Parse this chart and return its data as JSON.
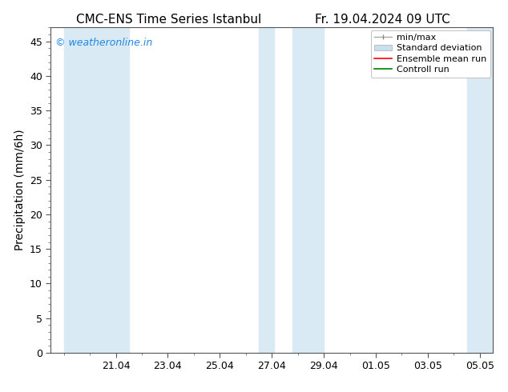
{
  "title_left": "CMC-ENS Time Series Istanbul",
  "title_right": "Fr. 19.04.2024 09 UTC",
  "ylabel": "Precipitation (mm/6h)",
  "background_color": "#ffffff",
  "plot_bg_color": "#ffffff",
  "ylim": [
    0,
    47
  ],
  "yticks": [
    0,
    5,
    10,
    15,
    20,
    25,
    30,
    35,
    40,
    45
  ],
  "xtick_labels": [
    "21.04",
    "23.04",
    "25.04",
    "27.04",
    "29.04",
    "01.05",
    "03.05",
    "05.05"
  ],
  "tick_positions": [
    2,
    4,
    6,
    8,
    10,
    12,
    14,
    16
  ],
  "xlim": [
    -0.5,
    16.5
  ],
  "shaded_regions": [
    [
      0.0,
      2.5
    ],
    [
      7.5,
      8.1
    ],
    [
      8.8,
      10.0
    ],
    [
      15.5,
      16.5
    ]
  ],
  "band_color": "#daeaf5",
  "watermark": "© weatheronline.in",
  "watermark_color": "#1e88e5",
  "legend_labels": [
    "min/max",
    "Standard deviation",
    "Ensemble mean run",
    "Controll run"
  ],
  "legend_line_colors": [
    "#999999",
    "#c5ddf0",
    "#ff0000",
    "#008000"
  ],
  "title_fontsize": 11,
  "tick_fontsize": 9,
  "ylabel_fontsize": 10,
  "watermark_fontsize": 9,
  "legend_fontsize": 8
}
